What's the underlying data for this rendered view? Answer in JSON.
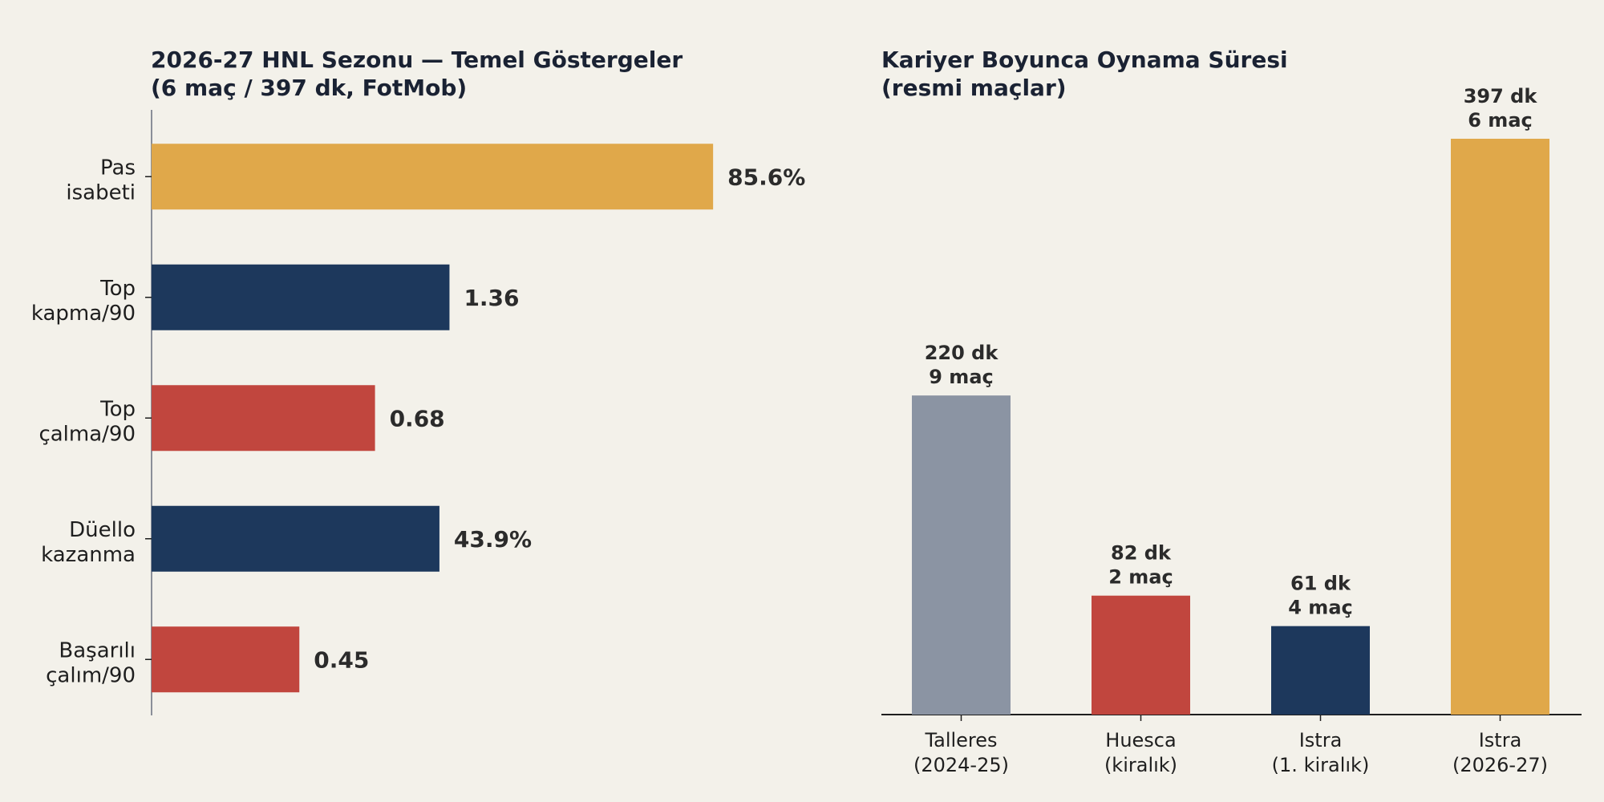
{
  "chart_data": [
    {
      "type": "bar",
      "orientation": "horizontal",
      "title": [
        "2026-27 HNL Sezonu — Temel Göstergeler",
        "(6 maç / 397 dk, FotMob)"
      ],
      "categories": [
        [
          "Pas",
          "isabeti"
        ],
        [
          "Top",
          "kapma/90"
        ],
        [
          "Top",
          "çalma/90"
        ],
        [
          "Düello",
          "kazanma"
        ],
        [
          "Başarılı",
          "çalım/90"
        ]
      ],
      "values": [
        85.6,
        1.36,
        0.68,
        43.9,
        0.45
      ],
      "value_labels": [
        "85.6%",
        "1.36",
        "0.68",
        "43.9%",
        "0.45"
      ],
      "bar_fill_fraction": [
        0.95,
        0.504,
        0.378,
        0.487,
        0.25
      ],
      "colors": [
        "#e0a84a",
        "#1d385c",
        "#c1463e",
        "#1d385c",
        "#c1463e"
      ],
      "x_axis_visible": false,
      "grid": false
    },
    {
      "type": "bar",
      "orientation": "vertical",
      "title": [
        "Kariyer Boyunca Oynama Süresi",
        "(resmi maçlar)"
      ],
      "categories": [
        [
          "Talleres",
          "(2024-25)"
        ],
        [
          "Huesca",
          "(kiralık)"
        ],
        [
          "Istra",
          "(1. kiralık)"
        ],
        [
          "Istra",
          "(2026-27)"
        ]
      ],
      "values": [
        220,
        82,
        61,
        397
      ],
      "value_labels": [
        [
          "220 dk",
          "9 maç"
        ],
        [
          "82 dk",
          "2 maç"
        ],
        [
          "61 dk",
          "4 maç"
        ],
        [
          "397 dk",
          "6 maç"
        ]
      ],
      "colors": [
        "#8b94a3",
        "#c1463e",
        "#1d385c",
        "#e0a84a"
      ],
      "ylim": [
        0,
        397
      ],
      "y_axis_visible": false,
      "grid": false
    }
  ]
}
